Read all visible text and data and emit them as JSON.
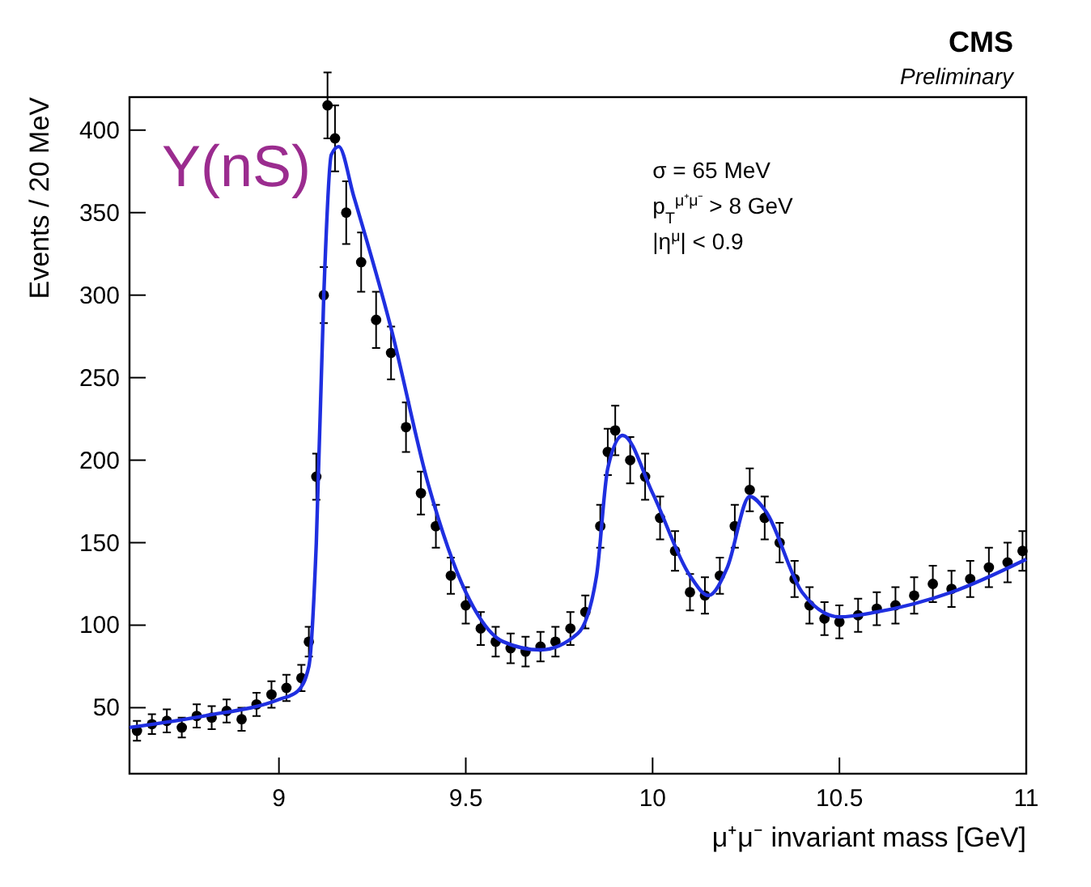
{
  "chart_data": {
    "type": "scatter",
    "xlabel": "μ⁺μ⁻ invariant mass [GeV]",
    "ylabel": "Events / 20 MeV",
    "annotations": [
      "Y(nS)",
      "CMS",
      "Preliminary",
      "σ = 65 MeV",
      "p$_{T}$$^{μ⁺μ⁻}$ > 8 GeV",
      "|η$^{μ}$| < 0.9"
    ],
    "xlim": [
      8.6,
      11
    ],
    "xticks": [
      9,
      9.5,
      10,
      10.5,
      11
    ],
    "ylim": [
      10,
      420
    ],
    "yticks": [
      50,
      100,
      150,
      200,
      250,
      300,
      350,
      400
    ],
    "grid": false,
    "marker": "circle",
    "series": [
      {
        "color": "#000000",
        "x": [
          8.62,
          8.66,
          8.7,
          8.74,
          8.78,
          8.82,
          8.86,
          8.9,
          8.94,
          8.98,
          9.02,
          9.06,
          9.08,
          9.1,
          9.12,
          9.13,
          9.15,
          9.18,
          9.22,
          9.26,
          9.3,
          9.34,
          9.38,
          9.42,
          9.46,
          9.5,
          9.54,
          9.58,
          9.62,
          9.66,
          9.7,
          9.74,
          9.78,
          9.82,
          9.86,
          9.88,
          9.9,
          9.94,
          9.98,
          10.02,
          10.06,
          10.1,
          10.14,
          10.18,
          10.22,
          10.26,
          10.3,
          10.34,
          10.38,
          10.42,
          10.46,
          10.5,
          10.55,
          10.6,
          10.65,
          10.7,
          10.75,
          10.8,
          10.85,
          10.9,
          10.95,
          10.99
        ],
        "values": [
          36,
          40,
          42,
          38,
          45,
          44,
          48,
          43,
          52,
          58,
          62,
          68,
          90,
          190,
          300,
          415,
          395,
          350,
          320,
          285,
          265,
          220,
          180,
          160,
          130,
          112,
          98,
          90,
          86,
          84,
          87,
          90,
          98,
          108,
          160,
          205,
          218,
          200,
          190,
          165,
          145,
          120,
          118,
          130,
          160,
          182,
          165,
          150,
          128,
          112,
          104,
          102,
          106,
          110,
          112,
          118,
          125,
          122,
          128,
          135,
          138,
          145
        ],
        "errors": [
          6,
          6,
          7,
          6,
          7,
          7,
          7,
          7,
          7,
          8,
          8,
          8,
          9,
          14,
          17,
          20,
          20,
          19,
          18,
          17,
          16,
          15,
          13,
          13,
          11,
          11,
          10,
          9,
          9,
          9,
          9,
          9,
          10,
          10,
          13,
          14,
          15,
          14,
          14,
          13,
          12,
          11,
          11,
          11,
          13,
          13,
          13,
          12,
          11,
          11,
          10,
          10,
          10,
          10,
          11,
          11,
          11,
          11,
          11,
          12,
          12,
          12
        ]
      },
      {
        "type": "line",
        "color": "#1f2fe0",
        "line_style": "solid",
        "marker": "none",
        "x": [
          8.6,
          8.8,
          9.0,
          9.05,
          9.08,
          9.1,
          9.12,
          9.14,
          9.16,
          9.2,
          9.3,
          9.4,
          9.5,
          9.6,
          9.7,
          9.8,
          9.85,
          9.88,
          9.92,
          10.0,
          10.1,
          10.15,
          10.2,
          10.26,
          10.3,
          10.4,
          10.5,
          10.6,
          10.8,
          11.0
        ],
        "values": [
          38,
          45,
          55,
          60,
          75,
          150,
          300,
          385,
          390,
          360,
          280,
          185,
          120,
          90,
          85,
          95,
          130,
          195,
          215,
          180,
          130,
          118,
          135,
          178,
          170,
          120,
          105,
          108,
          120,
          140
        ]
      }
    ]
  }
}
